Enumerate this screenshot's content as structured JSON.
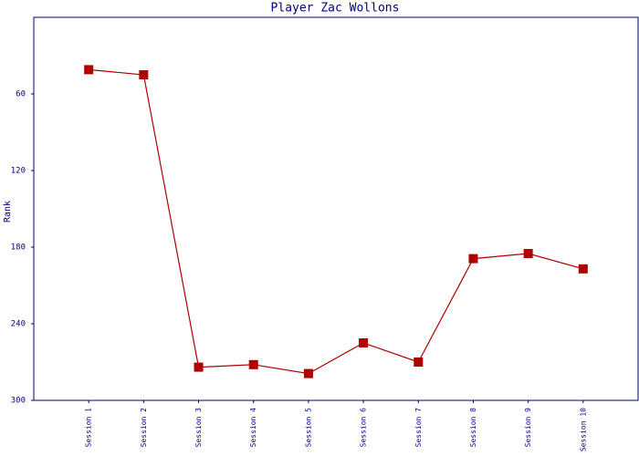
{
  "chart_data": {
    "type": "line",
    "title": "Player Zac Wollons",
    "y_label": "Rank",
    "categories": [
      "Session 1",
      "Session 2",
      "Session 3",
      "Session 4",
      "Session 5",
      "Session 6",
      "Session 7",
      "Session 8",
      "Session 9",
      "Session 10"
    ],
    "series": [
      {
        "name": "Rank",
        "color": "#b00000",
        "values": [
          41,
          45,
          274,
          272,
          279,
          255,
          270,
          189,
          185,
          197
        ]
      }
    ],
    "ylim": [
      0,
      300
    ],
    "yticks": [
      60,
      120,
      180,
      240,
      300
    ],
    "y_inverted": true,
    "grid": false
  }
}
